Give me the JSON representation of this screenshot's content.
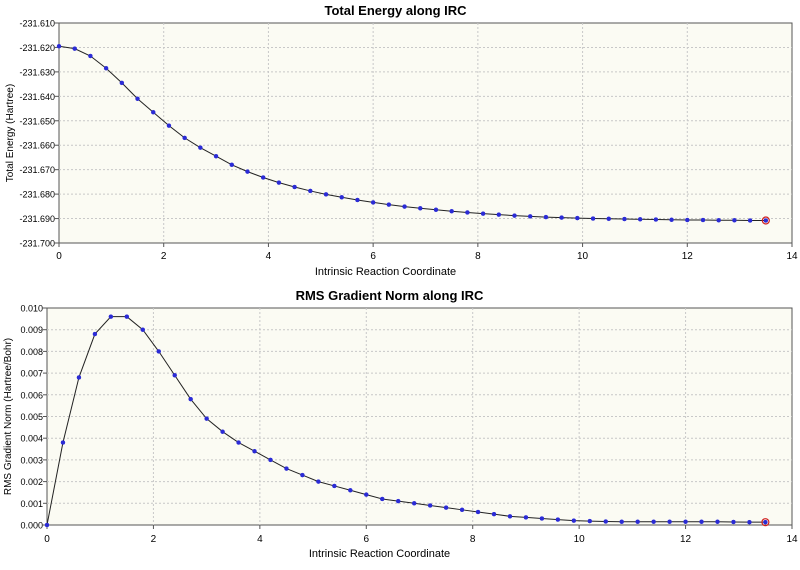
{
  "chart_data": [
    {
      "type": "line",
      "title": "Total Energy along IRC",
      "xlabel": "Intrinsic Reaction Coordinate",
      "ylabel": "Total Energy (Hartree)",
      "xlim": [
        0,
        14
      ],
      "ylim": [
        -231.7,
        -231.61
      ],
      "x_ticks": [
        "0",
        "2",
        "4",
        "6",
        "8",
        "10",
        "12",
        "14"
      ],
      "y_ticks": [
        "-231.610",
        "-231.620",
        "-231.630",
        "-231.640",
        "-231.650",
        "-231.660",
        "-231.670",
        "-231.680",
        "-231.690",
        "-231.700"
      ],
      "grid": true,
      "highlight_last_point": true,
      "series": [
        {
          "x": [
            0,
            0.3,
            0.6,
            0.9,
            1.2,
            1.5,
            1.8,
            2.1,
            2.4,
            2.7,
            3.0,
            3.3,
            3.6,
            3.9,
            4.2,
            4.5,
            4.8,
            5.1,
            5.4,
            5.7,
            6.0,
            6.3,
            6.6,
            6.9,
            7.2,
            7.5,
            7.8,
            8.1,
            8.4,
            8.7,
            9.0,
            9.3,
            9.6,
            9.9,
            10.2,
            10.5,
            10.8,
            11.1,
            11.4,
            11.7,
            12.0,
            12.3,
            12.6,
            12.9,
            13.2,
            13.5
          ],
          "values": [
            -231.6195,
            -231.6205,
            -231.6235,
            -231.6285,
            -231.6345,
            -231.641,
            -231.6465,
            -231.652,
            -231.657,
            -231.661,
            -231.6645,
            -231.668,
            -231.6708,
            -231.6732,
            -231.6753,
            -231.6771,
            -231.6787,
            -231.6801,
            -231.6813,
            -231.6824,
            -231.6834,
            -231.6843,
            -231.6851,
            -231.6858,
            -231.6864,
            -231.687,
            -231.6875,
            -231.688,
            -231.6884,
            -231.6888,
            -231.6891,
            -231.6894,
            -231.6896,
            -231.6898,
            -231.69,
            -231.6901,
            -231.6902,
            -231.6903,
            -231.6904,
            -231.6905,
            -231.6906,
            -231.6906,
            -231.6907,
            -231.6907,
            -231.6908,
            -231.6908
          ]
        }
      ]
    },
    {
      "type": "line",
      "title": "RMS Gradient Norm along IRC",
      "xlabel": "Intrinsic Reaction Coordinate",
      "ylabel": "RMS Gradient Norm (Hartree/Bohr)",
      "xlim": [
        0,
        14
      ],
      "ylim": [
        0,
        0.01
      ],
      "x_ticks": [
        "0",
        "2",
        "4",
        "6",
        "8",
        "10",
        "12",
        "14"
      ],
      "y_ticks": [
        "0.010",
        "0.009",
        "0.008",
        "0.007",
        "0.006",
        "0.005",
        "0.004",
        "0.003",
        "0.002",
        "0.001",
        "0.000"
      ],
      "grid": true,
      "highlight_last_point": true,
      "series": [
        {
          "x": [
            0,
            0.3,
            0.6,
            0.9,
            1.2,
            1.5,
            1.8,
            2.1,
            2.4,
            2.7,
            3.0,
            3.3,
            3.6,
            3.9,
            4.2,
            4.5,
            4.8,
            5.1,
            5.4,
            5.7,
            6.0,
            6.3,
            6.6,
            6.9,
            7.2,
            7.5,
            7.8,
            8.1,
            8.4,
            8.7,
            9.0,
            9.3,
            9.6,
            9.9,
            10.2,
            10.5,
            10.8,
            11.1,
            11.4,
            11.7,
            12.0,
            12.3,
            12.6,
            12.9,
            13.2,
            13.5
          ],
          "values": [
            0.0,
            0.0038,
            0.0068,
            0.0088,
            0.0096,
            0.0096,
            0.009,
            0.008,
            0.0069,
            0.0058,
            0.0049,
            0.0043,
            0.0038,
            0.0034,
            0.003,
            0.0026,
            0.0023,
            0.002,
            0.0018,
            0.0016,
            0.0014,
            0.0012,
            0.0011,
            0.001,
            0.0009,
            0.0008,
            0.0007,
            0.0006,
            0.0005,
            0.0004,
            0.00035,
            0.0003,
            0.00025,
            0.0002,
            0.00018,
            0.00016,
            0.00015,
            0.00015,
            0.00015,
            0.00015,
            0.00015,
            0.00015,
            0.00015,
            0.00014,
            0.00013,
            0.00013
          ]
        }
      ]
    }
  ],
  "colors": {
    "plot_background": "#fbfbf3",
    "grid": "#c8c8c8",
    "axis": "#555555",
    "line": "#222222",
    "marker": "#2b2bd6",
    "highlight": "#d02020",
    "text": "#000000"
  }
}
